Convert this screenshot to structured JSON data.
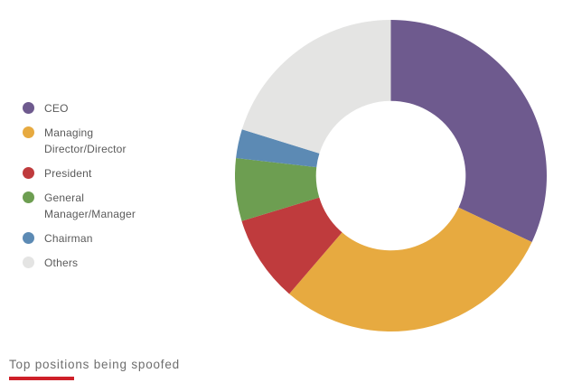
{
  "page": {
    "background": "#ffffff"
  },
  "chart_data": {
    "type": "pie",
    "subtype": "donut",
    "title": "Top positions being spoofed",
    "categories": [
      "CEO",
      "Managing Director/Director",
      "President",
      "General Manager/Manager",
      "Chairman",
      "Others"
    ],
    "values": [
      32,
      29.3,
      9,
      6.5,
      3,
      20.2
    ],
    "unit": "percent",
    "colors": [
      "#6E5A8E",
      "#E7AA40",
      "#BF3B3D",
      "#6D9E51",
      "#5C8AB4",
      "#E4E4E3"
    ],
    "start_angle_deg": 0,
    "direction": "clockwise",
    "donut_hole_ratio": 0.48,
    "legend_position": "left",
    "data_labels": false,
    "title_underline_color": "#CE2029",
    "legend_text_color": "#5a5a5a",
    "title_text_color": "#6e6e6e"
  }
}
